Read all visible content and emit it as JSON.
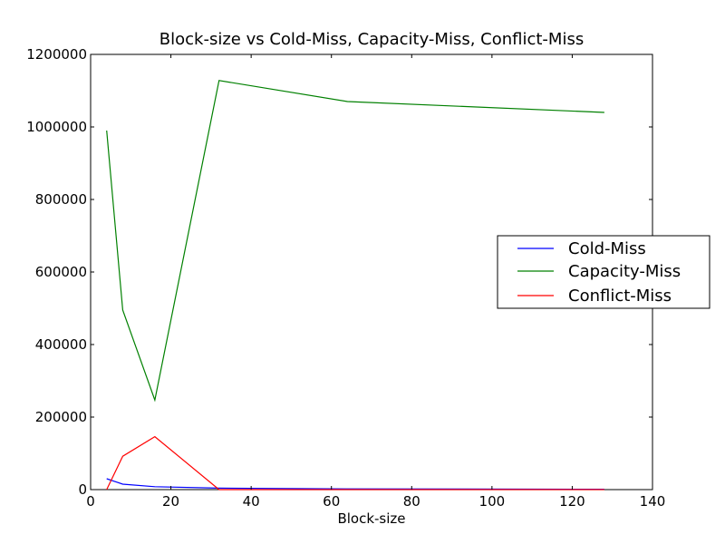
{
  "chart_data": {
    "type": "line",
    "title": "Block-size vs Cold-Miss, Capacity-Miss, Conflict-Miss",
    "xlabel": "Block-size",
    "ylabel": "",
    "xlim": [
      0,
      140
    ],
    "ylim": [
      0,
      1200000
    ],
    "xticks": [
      0,
      20,
      40,
      60,
      80,
      100,
      120,
      140
    ],
    "yticks": [
      0,
      200000,
      400000,
      600000,
      800000,
      1000000,
      1200000
    ],
    "x": [
      4,
      8,
      16,
      32,
      64,
      128
    ],
    "grid": false,
    "legend_position": "right",
    "series": [
      {
        "name": "Cold-Miss",
        "color": "#0000ff",
        "values": [
          30000,
          15000,
          8000,
          4000,
          2000,
          1000
        ]
      },
      {
        "name": "Capacity-Miss",
        "color": "#008000",
        "values": [
          990000,
          495000,
          247000,
          1128000,
          1070000,
          1040000
        ]
      },
      {
        "name": "Conflict-Miss",
        "color": "#ff0000",
        "values": [
          0,
          92000,
          146000,
          0,
          0,
          0
        ]
      }
    ]
  }
}
